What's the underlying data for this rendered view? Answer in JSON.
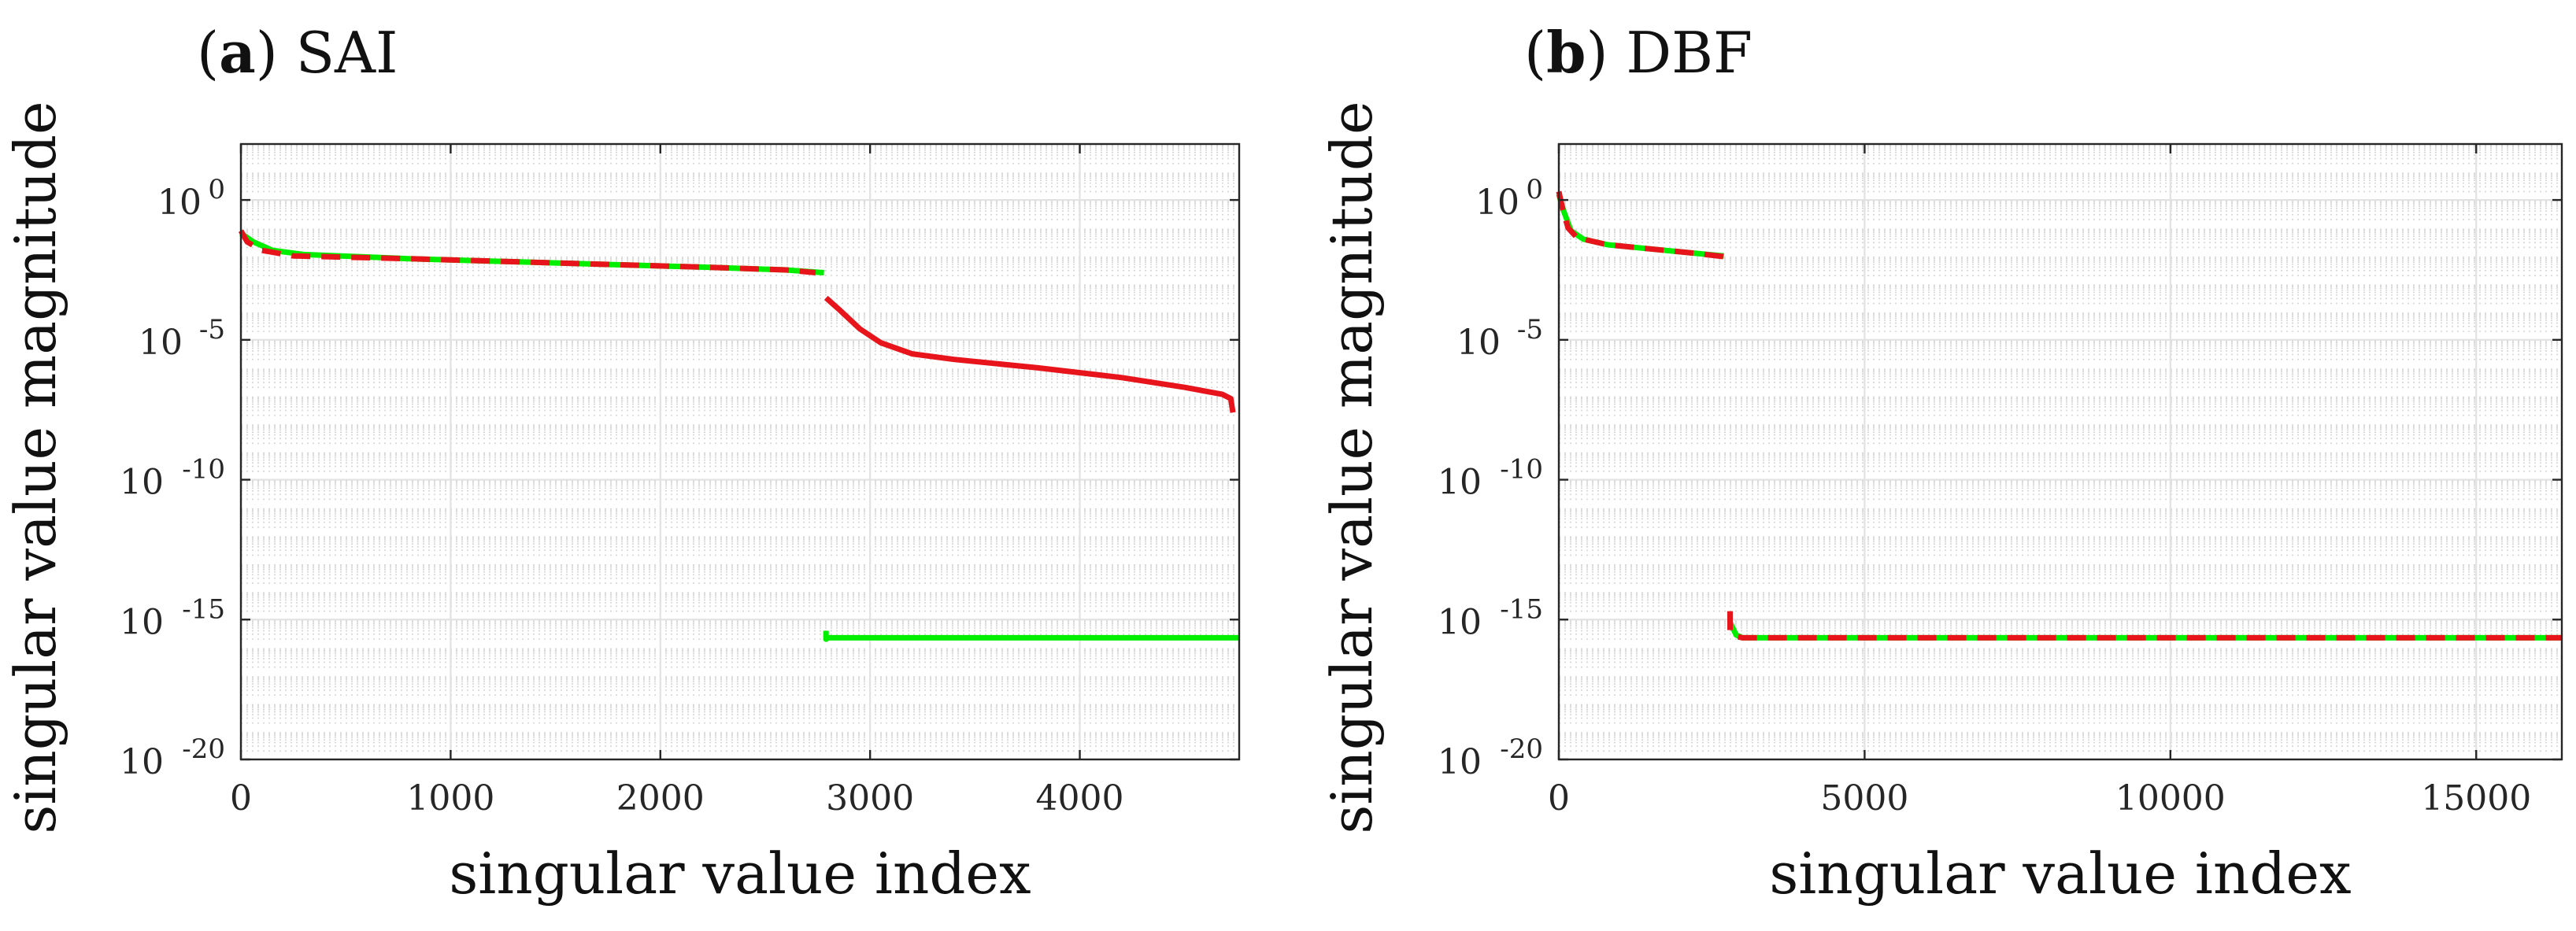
{
  "chart_data": [
    {
      "type": "line",
      "panel_letter": "a",
      "title": "SAI",
      "xlabel": "singular value index",
      "ylabel": "singular value magnitude",
      "yscale": "log",
      "xlim": [
        0,
        4760
      ],
      "ylim_exponent": [
        -20,
        2
      ],
      "xticks": [
        0,
        1000,
        2000,
        3000,
        4000
      ],
      "xtick_labels": [
        "0",
        "1000",
        "2000",
        "3000",
        "4000"
      ],
      "yticks_exponent": [
        0,
        -5,
        -10,
        -15,
        -20
      ],
      "ytick_bases": [
        "10",
        "10",
        "10",
        "10",
        "10"
      ],
      "ytick_exps": [
        "0",
        "-5",
        "-10",
        "-15",
        "-20"
      ],
      "grid": true,
      "series": [
        {
          "name": "green (solid)",
          "color": "#00ee00",
          "dashed": false,
          "segments": [
            [
              [
                0,
                -1.2
              ],
              [
                60,
                -1.5
              ],
              [
                150,
                -1.8
              ],
              [
                300,
                -1.95
              ],
              [
                800,
                -2.1
              ],
              [
                1500,
                -2.25
              ],
              [
                2200,
                -2.4
              ],
              [
                2600,
                -2.5
              ],
              [
                2780,
                -2.6
              ]
            ],
            [
              [
                2790,
                -15.4
              ],
              [
                2790,
                -15.7
              ],
              [
                2800,
                -15.65
              ],
              [
                4760,
                -15.65
              ]
            ]
          ]
        },
        {
          "name": "red (dashed)",
          "color": "#e8141b",
          "dashed": true,
          "segments": [
            [
              [
                0,
                -1.1
              ],
              [
                30,
                -1.5
              ],
              [
                100,
                -1.8
              ],
              [
                250,
                -2.0
              ],
              [
                800,
                -2.1
              ],
              [
                1500,
                -2.25
              ],
              [
                2200,
                -2.4
              ],
              [
                2600,
                -2.5
              ],
              [
                2740,
                -2.6
              ]
            ]
          ]
        },
        {
          "name": "red (solid)",
          "color": "#e8141b",
          "dashed": false,
          "segments": [
            [
              [
                2790,
                -3.5
              ],
              [
                2850,
                -3.9
              ],
              [
                2950,
                -4.6
              ],
              [
                3050,
                -5.1
              ],
              [
                3200,
                -5.5
              ],
              [
                3400,
                -5.7
              ],
              [
                3800,
                -6.0
              ],
              [
                4200,
                -6.35
              ],
              [
                4500,
                -6.7
              ],
              [
                4680,
                -6.95
              ],
              [
                4720,
                -7.1
              ],
              [
                4730,
                -7.6
              ]
            ]
          ]
        }
      ]
    },
    {
      "type": "line",
      "panel_letter": "b",
      "title": "DBF",
      "xlabel": "singular value index",
      "ylabel": "singular value magnitude",
      "yscale": "log",
      "xlim": [
        0,
        16400
      ],
      "ylim_exponent": [
        -20,
        2
      ],
      "xticks": [
        0,
        5000,
        10000,
        15000
      ],
      "xtick_labels": [
        "0",
        "5000",
        "10000",
        "15000"
      ],
      "yticks_exponent": [
        0,
        -5,
        -10,
        -15,
        -20
      ],
      "ytick_bases": [
        "10",
        "10",
        "10",
        "10",
        "10"
      ],
      "ytick_exps": [
        "0",
        "-5",
        "-10",
        "-15",
        "-20"
      ],
      "grid": true,
      "series": [
        {
          "name": "green (solid)",
          "color": "#00ee00",
          "dashed": false,
          "segments": [
            [
              [
                0,
                0.2
              ],
              [
                80,
                -0.4
              ],
              [
                200,
                -1.1
              ],
              [
                400,
                -1.4
              ],
              [
                800,
                -1.6
              ],
              [
                1500,
                -1.75
              ],
              [
                2200,
                -1.9
              ],
              [
                2700,
                -2.0
              ]
            ],
            [
              [
                2800,
                -15.1
              ],
              [
                2900,
                -15.55
              ],
              [
                3000,
                -15.65
              ],
              [
                16400,
                -15.65
              ]
            ]
          ]
        },
        {
          "name": "red (dashed)",
          "color": "#e8141b",
          "dashed": true,
          "segments": [
            [
              [
                0,
                0.3
              ],
              [
                60,
                -0.3
              ],
              [
                150,
                -1.0
              ],
              [
                300,
                -1.35
              ],
              [
                800,
                -1.6
              ],
              [
                1500,
                -1.75
              ],
              [
                2200,
                -1.9
              ],
              [
                2800,
                -2.05
              ]
            ],
            [
              [
                2800,
                -14.7
              ],
              [
                2800,
                -15.4
              ],
              [
                2900,
                -15.6
              ],
              [
                3000,
                -15.65
              ],
              [
                16400,
                -15.65
              ]
            ]
          ]
        }
      ]
    }
  ]
}
